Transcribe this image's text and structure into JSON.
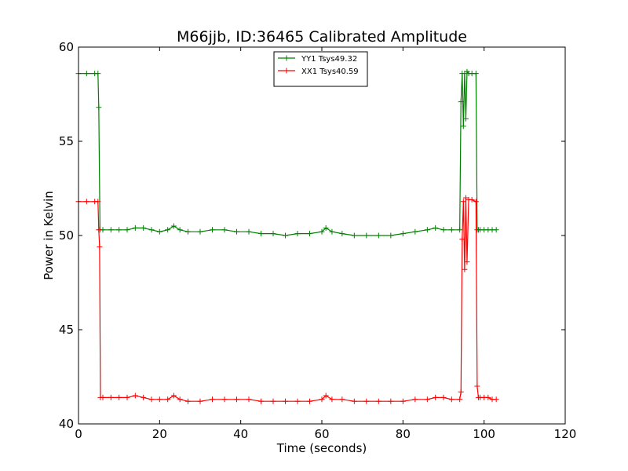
{
  "chart_data": {
    "type": "line",
    "title": "M66jjb, ID:36465 Calibrated Amplitude",
    "xlabel": "Time (seconds)",
    "ylabel": "Power in Kelvin",
    "xlim": [
      0,
      120
    ],
    "ylim": [
      40,
      60
    ],
    "xticks": [
      0,
      20,
      40,
      60,
      80,
      100,
      120
    ],
    "yticks": [
      40,
      45,
      50,
      55,
      60
    ],
    "xtick_labels": [
      "0",
      "20",
      "40",
      "60",
      "80",
      "100",
      "120"
    ],
    "ytick_labels": [
      "40",
      "45",
      "50",
      "55",
      "60"
    ],
    "grid": false,
    "legend_position": "upper center",
    "marker": "+",
    "series": [
      {
        "name": "YY1 Tsys49.32",
        "color": "#008000",
        "x": [
          0,
          2,
          4,
          4.8,
          5.0,
          5.3,
          6,
          8,
          10,
          12,
          14,
          16,
          18,
          20,
          22,
          23.5,
          25,
          27,
          30,
          33,
          36,
          39,
          42,
          45,
          48,
          51,
          54,
          57,
          60,
          61,
          62.5,
          65,
          68,
          71,
          74,
          77,
          80,
          83,
          86,
          88,
          90,
          92,
          94,
          94.3,
          94.6,
          94.9,
          95.2,
          95.5,
          95.8,
          96.2,
          97,
          98,
          98.3,
          98.6,
          99,
          100,
          101,
          102,
          103
        ],
        "y": [
          58.6,
          58.6,
          58.6,
          58.6,
          56.8,
          50.3,
          50.3,
          50.3,
          50.3,
          50.3,
          50.4,
          50.4,
          50.3,
          50.2,
          50.3,
          50.5,
          50.3,
          50.2,
          50.2,
          50.3,
          50.3,
          50.2,
          50.2,
          50.1,
          50.1,
          50.0,
          50.1,
          50.1,
          50.2,
          50.4,
          50.2,
          50.1,
          50.0,
          50.0,
          50.0,
          50.0,
          50.1,
          50.2,
          50.3,
          50.4,
          50.3,
          50.3,
          50.3,
          57.1,
          58.6,
          55.8,
          58.6,
          56.2,
          58.7,
          58.6,
          58.6,
          58.6,
          50.3,
          50.3,
          50.3,
          50.3,
          50.3,
          50.3,
          50.3
        ]
      },
      {
        "name": "XX1 Tsys40.59",
        "color": "#ff0000",
        "x": [
          0,
          2,
          4,
          4.8,
          5.0,
          5.2,
          5.4,
          6,
          8,
          10,
          12,
          14,
          16,
          18,
          20,
          22,
          23.5,
          25,
          27,
          30,
          33,
          36,
          39,
          42,
          45,
          48,
          51,
          54,
          57,
          60,
          61,
          62.5,
          65,
          68,
          71,
          74,
          77,
          80,
          83,
          86,
          88,
          90,
          92,
          94,
          94.3,
          94.6,
          94.9,
          95.2,
          95.5,
          95.8,
          96.2,
          97,
          98,
          98.3,
          98.6,
          99,
          100,
          101,
          102,
          103
        ],
        "y": [
          51.8,
          51.8,
          51.8,
          51.8,
          50.3,
          49.4,
          41.4,
          41.4,
          41.4,
          41.4,
          41.4,
          41.5,
          41.4,
          41.3,
          41.3,
          41.3,
          41.5,
          41.3,
          41.2,
          41.2,
          41.3,
          41.3,
          41.3,
          41.3,
          41.2,
          41.2,
          41.2,
          41.2,
          41.2,
          41.3,
          41.5,
          41.3,
          41.3,
          41.2,
          41.2,
          41.2,
          41.2,
          41.2,
          41.3,
          41.3,
          41.4,
          41.4,
          41.3,
          41.3,
          41.7,
          49.8,
          51.8,
          48.2,
          52.0,
          48.6,
          51.9,
          51.9,
          51.8,
          42.0,
          41.4,
          41.4,
          41.4,
          41.4,
          41.3,
          41.3
        ]
      }
    ]
  }
}
